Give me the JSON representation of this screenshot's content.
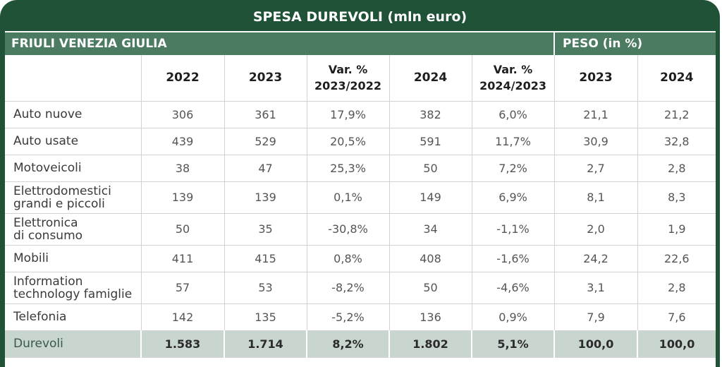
{
  "colors": {
    "frame": "#1f5236",
    "group_header": "#4b7b60",
    "total_row": "#c8d6cf",
    "grid": "#d3d3d3"
  },
  "chart_data": {
    "type": "table",
    "title": "SPESA DUREVOLI (mln euro)",
    "group_headers": [
      "FRIULI VENEZIA GIULIA",
      "PESO (in %)"
    ],
    "columns": [
      [
        "2022"
      ],
      [
        "2023"
      ],
      [
        "Var. %",
        "2023/2022"
      ],
      [
        "2024"
      ],
      [
        "Var. %",
        "2024/2023"
      ],
      [
        "2023"
      ],
      [
        "2024"
      ]
    ],
    "rows": [
      {
        "label": [
          "Auto nuove"
        ],
        "values": [
          "306",
          "361",
          "17,9%",
          "382",
          "6,0%",
          "21,1",
          "21,2"
        ]
      },
      {
        "label": [
          "Auto usate"
        ],
        "values": [
          "439",
          "529",
          "20,5%",
          "591",
          "11,7%",
          "30,9",
          "32,8"
        ]
      },
      {
        "label": [
          "Motoveicoli"
        ],
        "values": [
          "38",
          "47",
          "25,3%",
          "50",
          "7,2%",
          "2,7",
          "2,8"
        ]
      },
      {
        "label": [
          "Elettrodomestici",
          "grandi e piccoli"
        ],
        "values": [
          "139",
          "139",
          "0,1%",
          "149",
          "6,9%",
          "8,1",
          "8,3"
        ]
      },
      {
        "label": [
          "Elettronica",
          "di consumo"
        ],
        "values": [
          "50",
          "35",
          "-30,8%",
          "34",
          "-1,1%",
          "2,0",
          "1,9"
        ]
      },
      {
        "label": [
          "Mobili"
        ],
        "values": [
          "411",
          "415",
          "0,8%",
          "408",
          "-1,6%",
          "24,2",
          "22,6"
        ]
      },
      {
        "label": [
          "Information",
          "technology famiglie"
        ],
        "values": [
          "57",
          "53",
          "-8,2%",
          "50",
          "-4,6%",
          "3,1",
          "2,8"
        ]
      },
      {
        "label": [
          "Telefonia"
        ],
        "values": [
          "142",
          "135",
          "-5,2%",
          "136",
          "0,9%",
          "7,9",
          "7,6"
        ]
      }
    ],
    "total_row": {
      "label": [
        "Durevoli"
      ],
      "values": [
        "1.583",
        "1.714",
        "8,2%",
        "1.802",
        "5,1%",
        "100,0",
        "100,0"
      ]
    }
  }
}
